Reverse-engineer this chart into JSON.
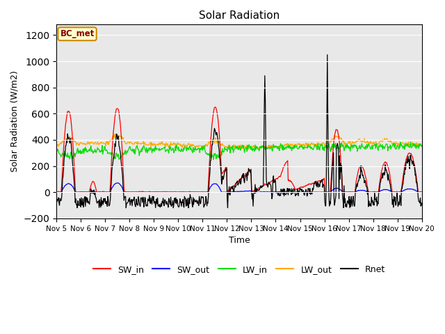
{
  "title": "Solar Radiation",
  "xlabel": "Time",
  "ylabel": "Solar Radiation (W/m2)",
  "ylim": [
    -200,
    1280
  ],
  "yticks": [
    -200,
    0,
    200,
    400,
    600,
    800,
    1000,
    1200
  ],
  "annotation_text": "BC_met",
  "colors": {
    "SW_in": "#ff0000",
    "SW_out": "#0000ff",
    "LW_in": "#00dd00",
    "LW_out": "#ffaa00",
    "Rnet": "#000000"
  },
  "legend_labels": [
    "SW_in",
    "SW_out",
    "LW_in",
    "LW_out",
    "Rnet"
  ],
  "x_tick_labels": [
    "Nov 5",
    "Nov 6",
    "Nov 7",
    "Nov 8",
    "Nov 9",
    "Nov 10",
    "Nov 11",
    "Nov 12",
    "Nov 13",
    "Nov 14",
    "Nov 15",
    "Nov 16",
    "Nov 17",
    "Nov 18",
    "Nov 19",
    "Nov 20"
  ],
  "n_days": 15,
  "points_per_day": 48,
  "background_color": "#e8e8e8",
  "plot_bg_bands": [
    {
      "ymin": 600,
      "ymax": 1280,
      "color": "#d0d0d0"
    },
    {
      "ymin": 200,
      "ymax": 600,
      "color": "#dcdcdc"
    },
    {
      "ymin": -200,
      "ymax": 200,
      "color": "#e8e8e8"
    }
  ]
}
